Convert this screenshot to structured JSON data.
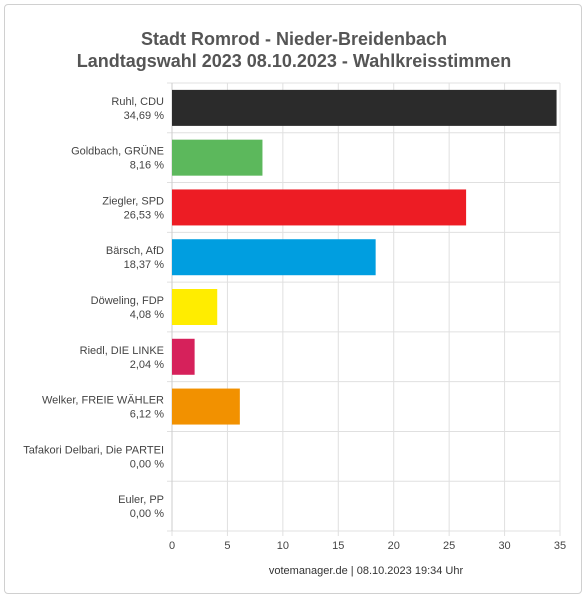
{
  "header": {
    "title_line1": "Stadt Romrod - Nieder-Breidenbach",
    "title_line2": "Landtagswahl 2023 08.10.2023  - Wahlkreisstimmen"
  },
  "footer": {
    "source": "votemanager.de | 08.10.2023 19:34 Uhr"
  },
  "chart_data": {
    "type": "bar",
    "orientation": "horizontal",
    "title": "Stadt Romrod - Nieder-Breidenbach Landtagswahl 2023 08.10.2023  - Wahlkreisstimmen",
    "categories": [
      "Ruhl, CDU",
      "Goldbach, GRÜNE",
      "Ziegler, SPD",
      "Bärsch, AfD",
      "Döweling, FDP",
      "Riedl, DIE LINKE",
      "Welker, FREIE WÄHLER",
      "Tafakori Delbari, Die PARTEI",
      "Euler, PP"
    ],
    "value_labels": [
      "34,69 %",
      "8,16 %",
      "26,53 %",
      "18,37 %",
      "4,08 %",
      "2,04 %",
      "6,12 %",
      "0,00 %",
      "0,00 %"
    ],
    "values": [
      34.69,
      8.16,
      26.53,
      18.37,
      4.08,
      2.04,
      6.12,
      0.0,
      0.0
    ],
    "colors": [
      "#2b2b2b",
      "#5cb85c",
      "#ed1c24",
      "#009ee0",
      "#ffed00",
      "#d6215b",
      "#f29100",
      "#b5b5b5",
      "#ff8800"
    ],
    "xlim": [
      0,
      35
    ],
    "xticks": [
      "0",
      "5",
      "10",
      "15",
      "20",
      "25",
      "30",
      "35"
    ],
    "grid": true
  }
}
